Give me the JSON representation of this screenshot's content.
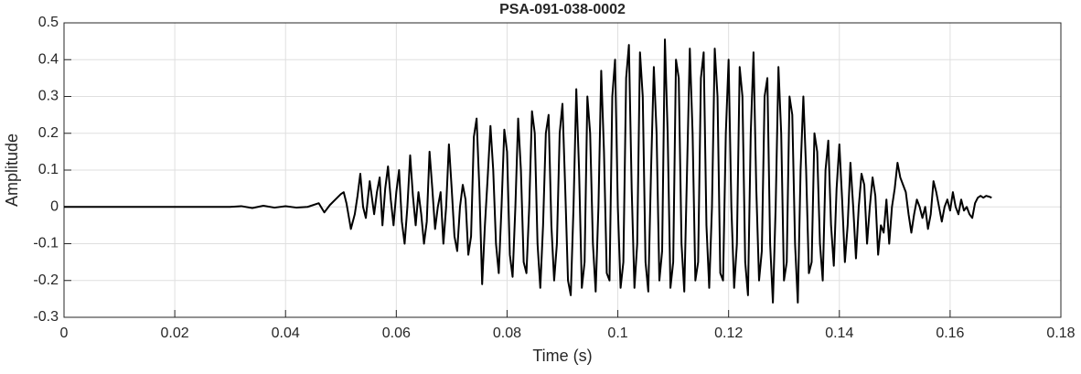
{
  "chart_data": {
    "type": "line",
    "title": "PSA-091-038-0002",
    "x_label": "Time (s)",
    "y_label": "Amplitude",
    "xlim": [
      0,
      0.18
    ],
    "xticks": [
      0,
      0.02,
      0.04,
      0.06,
      0.08,
      0.1,
      0.12,
      0.14,
      0.16,
      0.18
    ],
    "ylim": [
      -0.3,
      0.5
    ],
    "yticks": [
      0.5,
      0.4,
      0.3,
      0.2,
      0.1,
      0,
      -0.1,
      -0.2,
      -0.3
    ],
    "grid": true,
    "series": [
      {
        "name": "Amplitude",
        "color": "#000000",
        "x": [
          0,
          0.01,
          0.02,
          0.03,
          0.032,
          0.034,
          0.036,
          0.038,
          0.04,
          0.042,
          0.044,
          0.046,
          0.047,
          0.048,
          0.049,
          0.05,
          0.0505,
          0.051,
          0.0518,
          0.0525,
          0.053,
          0.0535,
          0.054,
          0.0545,
          0.0552,
          0.056,
          0.0565,
          0.057,
          0.0575,
          0.058,
          0.0585,
          0.059,
          0.0595,
          0.06,
          0.0605,
          0.061,
          0.0615,
          0.062,
          0.0625,
          0.063,
          0.0635,
          0.064,
          0.0645,
          0.065,
          0.0655,
          0.066,
          0.0665,
          0.067,
          0.0675,
          0.068,
          0.0685,
          0.069,
          0.0695,
          0.07,
          0.0705,
          0.071,
          0.0715,
          0.072,
          0.0725,
          0.073,
          0.0735,
          0.074,
          0.0745,
          0.075,
          0.0755,
          0.076,
          0.0765,
          0.077,
          0.0775,
          0.078,
          0.0785,
          0.079,
          0.0795,
          0.08,
          0.0805,
          0.081,
          0.0815,
          0.082,
          0.0825,
          0.083,
          0.0835,
          0.084,
          0.0845,
          0.085,
          0.0855,
          0.086,
          0.0865,
          0.087,
          0.0875,
          0.088,
          0.0885,
          0.089,
          0.0895,
          0.09,
          0.0905,
          0.091,
          0.0915,
          0.092,
          0.0925,
          0.093,
          0.0935,
          0.094,
          0.0945,
          0.095,
          0.0955,
          0.096,
          0.0965,
          0.097,
          0.0975,
          0.098,
          0.0985,
          0.099,
          0.0995,
          0.1,
          0.1005,
          0.101,
          0.1015,
          0.102,
          0.1025,
          0.103,
          0.1035,
          0.104,
          0.1045,
          0.105,
          0.1055,
          0.106,
          0.1065,
          0.107,
          0.1075,
          0.108,
          0.1085,
          0.109,
          0.1095,
          0.11,
          0.1105,
          0.111,
          0.1115,
          0.112,
          0.1125,
          0.113,
          0.1135,
          0.114,
          0.1145,
          0.115,
          0.1155,
          0.116,
          0.1165,
          0.117,
          0.1175,
          0.118,
          0.1185,
          0.119,
          0.1195,
          0.12,
          0.1205,
          0.121,
          0.1215,
          0.122,
          0.1225,
          0.123,
          0.1235,
          0.124,
          0.1245,
          0.125,
          0.1255,
          0.126,
          0.1265,
          0.127,
          0.1275,
          0.128,
          0.1285,
          0.129,
          0.1295,
          0.13,
          0.1305,
          0.131,
          0.1315,
          0.132,
          0.1325,
          0.133,
          0.1335,
          0.134,
          0.1345,
          0.135,
          0.1355,
          0.136,
          0.1365,
          0.137,
          0.1375,
          0.138,
          0.1385,
          0.139,
          0.1395,
          0.14,
          0.1405,
          0.141,
          0.1415,
          0.142,
          0.1425,
          0.143,
          0.1435,
          0.144,
          0.1445,
          0.145,
          0.1455,
          0.146,
          0.1465,
          0.147,
          0.1475,
          0.148,
          0.1485,
          0.149,
          0.1495,
          0.15,
          0.1505,
          0.151,
          0.1515,
          0.152,
          0.1525,
          0.153,
          0.1535,
          0.154,
          0.1545,
          0.155,
          0.1555,
          0.156,
          0.1565,
          0.157,
          0.1575,
          0.158,
          0.1585,
          0.159,
          0.1595,
          0.16,
          0.1605,
          0.161,
          0.1615,
          0.162,
          0.1625,
          0.163,
          0.1635,
          0.164,
          0.1645,
          0.165,
          0.1655,
          0.166,
          0.1665,
          0.167,
          0.1675
        ],
        "values": [
          0,
          0,
          0,
          0,
          0.002,
          -0.003,
          0.003,
          -0.002,
          0.002,
          -0.002,
          0,
          0.01,
          -0.015,
          0.005,
          0.02,
          0.035,
          0.04,
          0.01,
          -0.06,
          -0.02,
          0.03,
          0.09,
          0,
          -0.03,
          0.07,
          -0.02,
          0.04,
          0.08,
          -0.05,
          0.05,
          0.11,
          0.02,
          -0.05,
          0.04,
          0.1,
          -0.04,
          -0.1,
          0,
          0.14,
          0.03,
          -0.05,
          0.04,
          -0.02,
          -0.1,
          -0.04,
          0.15,
          0.05,
          -0.06,
          0,
          0.04,
          -0.1,
          0,
          0.17,
          0.05,
          -0.08,
          -0.12,
          0,
          0.06,
          0.02,
          -0.13,
          -0.08,
          0.19,
          0.24,
          0.05,
          -0.21,
          -0.05,
          0.08,
          0.22,
          0.1,
          -0.1,
          -0.18,
          0,
          0.21,
          0.15,
          -0.13,
          -0.19,
          0,
          0.24,
          0.1,
          -0.15,
          -0.18,
          0,
          0.26,
          0.2,
          -0.1,
          -0.22,
          -0.05,
          0.2,
          0.25,
          -0.05,
          -0.2,
          -0.1,
          0.2,
          0.28,
          0.05,
          -0.2,
          -0.24,
          0,
          0.32,
          0.1,
          -0.22,
          -0.15,
          0.3,
          0.2,
          -0.1,
          -0.23,
          0,
          0.37,
          0.15,
          -0.18,
          -0.2,
          0.3,
          0.4,
          0,
          -0.22,
          -0.15,
          0.35,
          0.44,
          0.05,
          -0.22,
          -0.1,
          0.42,
          0.3,
          -0.15,
          -0.23,
          0.1,
          0.38,
          0.2,
          -0.2,
          -0.12,
          0.455,
          0.2,
          -0.22,
          -0.15,
          0.4,
          0.35,
          -0.1,
          -0.23,
          0.1,
          0.43,
          0.2,
          -0.2,
          -0.15,
          0.35,
          0.42,
          -0.05,
          -0.22,
          0,
          0.43,
          0.3,
          -0.18,
          -0.2,
          0.2,
          0.4,
          0,
          -0.22,
          -0.1,
          0.38,
          0.3,
          -0.15,
          -0.24,
          0.2,
          0.42,
          0.05,
          -0.2,
          -0.12,
          0.3,
          0.35,
          -0.1,
          -0.26,
          0,
          0.38,
          0.2,
          -0.2,
          -0.15,
          0.3,
          0.25,
          -0.1,
          -0.26,
          0.1,
          0.3,
          0.1,
          -0.18,
          -0.15,
          0.2,
          0.15,
          -0.1,
          -0.2,
          0.1,
          0.18,
          -0.05,
          -0.16,
          0.05,
          0.17,
          0.02,
          -0.15,
          -0.05,
          0.12,
          0,
          -0.14,
          0,
          0.09,
          0.06,
          -0.1,
          0,
          0.08,
          0.03,
          -0.13,
          -0.05,
          -0.07,
          0.02,
          -0.1,
          0,
          0.05,
          0.12,
          0.08,
          0.06,
          0.04,
          -0.02,
          -0.07,
          -0.02,
          0.02,
          0,
          -0.03,
          0,
          -0.06,
          -0.02,
          0.07,
          0.04,
          0,
          -0.04,
          0,
          0.02,
          -0.01,
          0.04,
          0,
          -0.02,
          0.02,
          -0.01,
          0,
          -0.02,
          -0.03,
          0.01,
          0.025,
          0.03,
          0.025,
          0.03,
          0.028,
          0.025
        ]
      }
    ]
  }
}
